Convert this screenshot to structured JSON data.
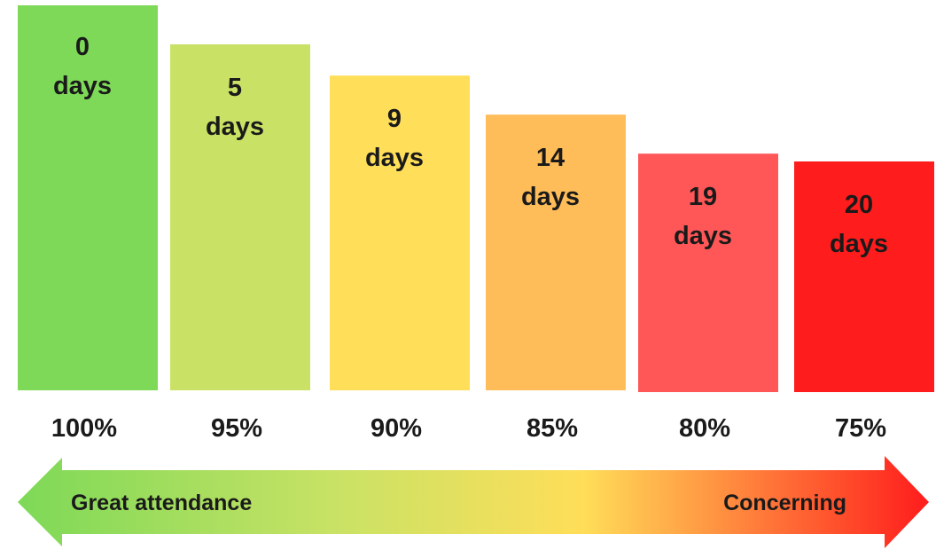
{
  "chart_data": {
    "type": "bar",
    "categories": [
      "100%",
      "95%",
      "90%",
      "85%",
      "80%",
      "75%"
    ],
    "values": [
      0,
      5,
      9,
      14,
      19,
      20
    ],
    "value_unit": "days",
    "colors": [
      "#7dd957",
      "#c9e265",
      "#ffde59",
      "#ffbd59",
      "#ff5757",
      "#ff1c1c"
    ],
    "title": "",
    "xlabel": "",
    "ylabel": "",
    "grid": false,
    "arrow": {
      "left_label": "Great attendance",
      "right_label": "Concerning",
      "gradient": [
        "#7dd957",
        "#c9e265",
        "#ffde59",
        "#ff1c1c"
      ]
    }
  }
}
